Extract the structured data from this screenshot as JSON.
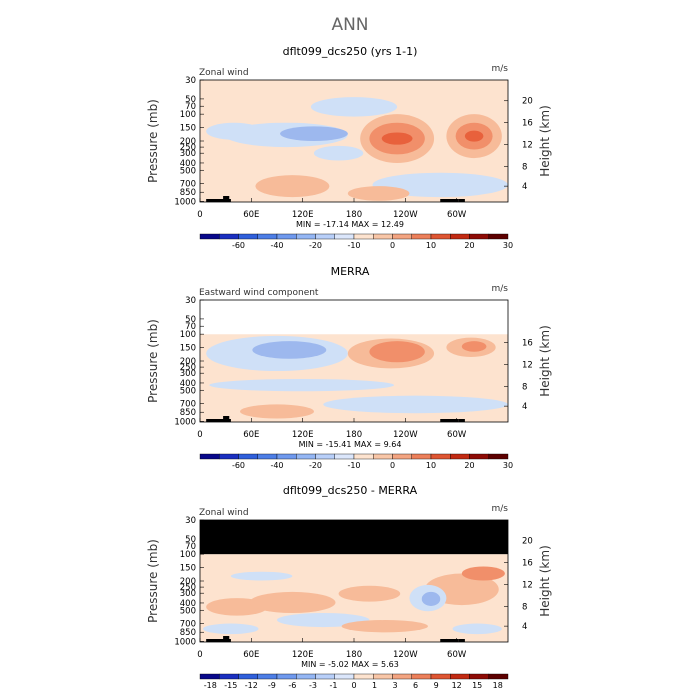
{
  "main_title": "ANN",
  "chart_data": [
    {
      "type": "contour",
      "title": "dflt099_dcs250 (yrs 1-1)",
      "left_label": "Zonal wind",
      "units": "m/s",
      "ylabel": "Pressure (mb)",
      "ylabel_right": "Height (km)",
      "y_ticks": [
        "30",
        "50",
        "70",
        "100",
        "150",
        "200",
        "250",
        "300",
        "400",
        "500",
        "700",
        "850",
        "1000"
      ],
      "height_ticks": [
        "20",
        "16",
        "12",
        "8",
        "4"
      ],
      "x_ticks": [
        "0",
        "60E",
        "120E",
        "180",
        "120W",
        "60W"
      ],
      "stats": "MIN =  -17.14   MAX =  12.49",
      "colorbar_levels": [
        "-60",
        "-40",
        "-20",
        "-10",
        "0",
        "10",
        "20",
        "30"
      ],
      "masked_top": false,
      "blank_top": false
    },
    {
      "type": "contour",
      "title": "MERRA",
      "left_label": "Eastward wind component",
      "units": "m/s",
      "ylabel": "Pressure (mb)",
      "ylabel_right": "Height (km)",
      "y_ticks": [
        "30",
        "50",
        "70",
        "100",
        "150",
        "200",
        "250",
        "300",
        "400",
        "500",
        "700",
        "850",
        "1000"
      ],
      "height_ticks": [
        "16",
        "12",
        "8",
        "4"
      ],
      "x_ticks": [
        "0",
        "60E",
        "120E",
        "180",
        "120W",
        "60W"
      ],
      "stats": "MIN =  -15.41   MAX =   9.64",
      "colorbar_levels": [
        "-60",
        "-40",
        "-20",
        "-10",
        "0",
        "10",
        "20",
        "30"
      ],
      "masked_top": false,
      "blank_top": true
    },
    {
      "type": "contour",
      "title": "dflt099_dcs250 - MERRA",
      "left_label": "Zonal wind",
      "units": "m/s",
      "ylabel": "Pressure (mb)",
      "ylabel_right": "Height (km)",
      "y_ticks": [
        "30",
        "50",
        "70",
        "100",
        "150",
        "200",
        "250",
        "300",
        "400",
        "500",
        "700",
        "850",
        "1000"
      ],
      "height_ticks": [
        "20",
        "16",
        "12",
        "8",
        "4"
      ],
      "x_ticks": [
        "0",
        "60E",
        "120E",
        "180",
        "120W",
        "60W"
      ],
      "stats": "MIN =  -5.02   MAX =   5.63",
      "colorbar_levels": [
        "-18",
        "-15",
        "-12",
        "-9",
        "-6",
        "-3",
        "-1",
        "0",
        "1",
        "3",
        "6",
        "9",
        "12",
        "15",
        "18"
      ],
      "masked_top": true,
      "blank_top": false
    }
  ],
  "colors": {
    "bg_light": "#fde3cf",
    "light_blue": "#cfe0f7",
    "mid_blue": "#9db8ee",
    "light_red": "#f7bb99",
    "mid_red": "#f18f6a",
    "strong_red": "#e8613c",
    "colorbar": [
      "#08088a",
      "#1a2fc0",
      "#2f5fdb",
      "#4d7ee6",
      "#6f99ee",
      "#94b6f4",
      "#b8cff9",
      "#dbe6fb",
      "#fde3cf",
      "#f8c6a7",
      "#f3a481",
      "#ec7f5a",
      "#de5532",
      "#c22a12",
      "#8e0b05",
      "#5c0000"
    ]
  }
}
